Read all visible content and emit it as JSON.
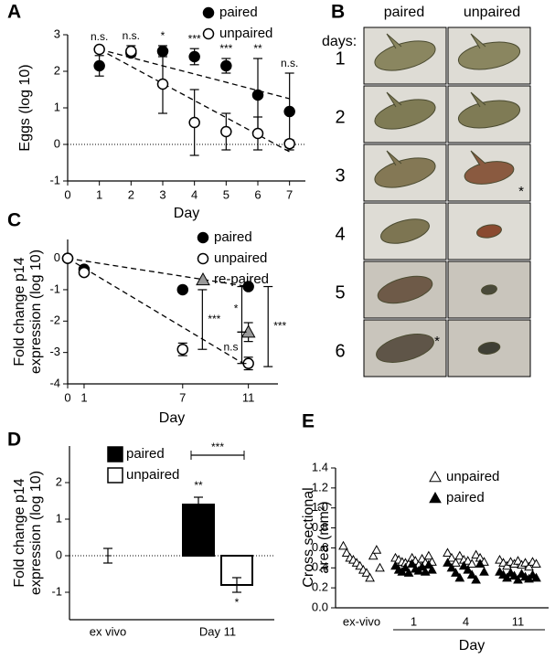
{
  "chart_data": [
    {
      "type": "line",
      "panel": "A",
      "ylabel": "Eggs (log 10)",
      "xlabel": "Day",
      "x": [
        1,
        2,
        3,
        4,
        5,
        6,
        7
      ],
      "xlim": [
        0,
        7.5
      ],
      "xticks": [
        0,
        1,
        2,
        3,
        4,
        5,
        6,
        7
      ],
      "ylim": [
        -1,
        3
      ],
      "yticks": [
        -1,
        0,
        1,
        2,
        3
      ],
      "series": [
        {
          "name": "paired",
          "color": "#000000",
          "marker": "filled",
          "values": [
            2.15,
            2.5,
            2.55,
            2.4,
            2.15,
            1.35,
            0.9
          ],
          "errors": [
            0.28,
            0.1,
            0.15,
            0.22,
            0.2,
            1.0,
            1.05
          ]
        },
        {
          "name": "unpaired",
          "color": "#000000",
          "marker": "open",
          "values": [
            2.6,
            2.55,
            1.65,
            0.6,
            0.35,
            0.3,
            0.02
          ],
          "errors": [
            0.08,
            0.15,
            0.8,
            0.9,
            0.5,
            0.45,
            0.1
          ]
        }
      ],
      "trend_lines": [
        {
          "x": [
            1,
            7
          ],
          "y": [
            2.6,
            1.25
          ]
        },
        {
          "x": [
            1,
            7
          ],
          "y": [
            2.6,
            -0.2
          ]
        }
      ],
      "reference_line": 0,
      "annotations": [
        {
          "text": "n.s.",
          "x": 1
        },
        {
          "text": "n.s.",
          "x": 2
        },
        {
          "text": "*",
          "x": 3
        },
        {
          "text": "***",
          "x": 4
        },
        {
          "text": "***",
          "x": 5
        },
        {
          "text": "**",
          "x": 6
        },
        {
          "text": "n.s.",
          "x": 7
        }
      ],
      "legend": "top-right"
    },
    {
      "type": "line",
      "panel": "C",
      "ylabel": [
        "Fold change p14",
        "expression (log 10)"
      ],
      "xlabel": "Day",
      "xlim": [
        0,
        12.8
      ],
      "xticks": [
        0,
        1,
        7,
        11
      ],
      "ylim": [
        -4,
        0.6
      ],
      "yticks": [
        -4,
        -3,
        -2,
        -1,
        0
      ],
      "series": [
        {
          "name": "paired",
          "color": "#000000",
          "marker": "filled",
          "x": [
            0,
            1,
            7,
            11
          ],
          "values": [
            0,
            -0.35,
            -1.0,
            -0.9
          ],
          "errors": [
            0.05,
            0.05,
            0.08,
            0.08
          ]
        },
        {
          "name": "unpaired",
          "color": "#000000",
          "marker": "open",
          "x": [
            0,
            1,
            7,
            11
          ],
          "values": [
            0,
            -0.45,
            -2.9,
            -3.35
          ],
          "errors": [
            0.05,
            0.08,
            0.2,
            0.2
          ]
        },
        {
          "name": "re-paired",
          "color": "#999999",
          "marker": "triangle",
          "x": [
            11
          ],
          "values": [
            -2.35
          ],
          "errors": [
            0.3
          ]
        }
      ],
      "trend_lines": [
        {
          "x": [
            0,
            11
          ],
          "y": [
            0,
            -0.9
          ]
        },
        {
          "x": [
            0,
            11
          ],
          "y": [
            0,
            -3.45
          ]
        }
      ],
      "brackets": [
        {
          "text": "***",
          "x": 8.2,
          "y": [
            -1.0,
            -2.9
          ]
        },
        {
          "text": "*",
          "x": 10.6,
          "y": [
            -0.9,
            -2.35
          ]
        },
        {
          "text": "n.s",
          "x": 10.6,
          "y": [
            -2.35,
            -3.35
          ]
        },
        {
          "text": "***",
          "x": 12.2,
          "y": [
            -0.9,
            -3.45
          ]
        }
      ],
      "legend": "top-right"
    },
    {
      "type": "bar",
      "panel": "D",
      "ylabel": [
        "Fold change p14",
        "expression (log 10)"
      ],
      "categories": [
        "ex vivo",
        "Day 11"
      ],
      "ylim": [
        -1.75,
        3
      ],
      "yticks": [
        -1,
        0,
        1,
        2
      ],
      "series": [
        {
          "name": "paired",
          "color": "#000000",
          "values": [
            null,
            1.4
          ],
          "errors": [
            null,
            0.2
          ]
        },
        {
          "name": "unpaired",
          "color": "#ffffff",
          "values": [
            0,
            -0.8
          ],
          "errors": [
            0.2,
            0.2
          ]
        }
      ],
      "annotations": [
        {
          "text": "**",
          "series": 0,
          "category": 1
        },
        {
          "text": "*",
          "series": 1,
          "category": 1
        }
      ],
      "comparison": {
        "text": "***",
        "category": 1
      },
      "reference_line": 0,
      "legend": "top-left"
    },
    {
      "type": "strip",
      "panel": "E",
      "ylabel": [
        "Cross sectional",
        "area (mm²)"
      ],
      "xlabel": "Day",
      "categories": [
        "ex-vivo",
        "1",
        "4",
        "11"
      ],
      "ylim": [
        0,
        1.4
      ],
      "yticks": [
        {
          "value": 0,
          "label": "0.0"
        },
        0.2,
        0.4,
        0.6,
        0.8,
        {
          "value": 1,
          "label": "1.0"
        },
        1.2,
        1.4
      ],
      "series": [
        {
          "name": "unpaired",
          "color": "#000000",
          "marker": "open",
          "values": [
            [
              0.62,
              0.55,
              0.5,
              0.48,
              0.45,
              0.42,
              0.38,
              0.35,
              0.3,
              0.52,
              0.58,
              0.4
            ],
            [
              0.5,
              0.48,
              0.46,
              0.45,
              0.44,
              0.5,
              0.47,
              0.43,
              0.49,
              0.45,
              0.52,
              0.46
            ],
            [
              0.55,
              0.5,
              0.45,
              0.52,
              0.48,
              0.47,
              0.44,
              0.53,
              0.5,
              0.46
            ],
            [
              0.48,
              0.45,
              0.42,
              0.46,
              0.44,
              0.47,
              0.43,
              0.45,
              0.41,
              0.46,
              0.44
            ]
          ]
        },
        {
          "name": "paired",
          "color": "#000000",
          "marker": "filled",
          "values": [
            null,
            [
              0.42,
              0.38,
              0.36,
              0.4,
              0.35,
              0.44,
              0.39,
              0.37,
              0.41,
              0.36,
              0.43,
              0.38
            ],
            [
              0.45,
              0.4,
              0.35,
              0.3,
              0.42,
              0.38,
              0.33,
              0.28,
              0.44,
              0.36
            ],
            [
              0.36,
              0.33,
              0.3,
              0.35,
              0.32,
              0.28,
              0.34,
              0.31,
              0.29,
              0.33,
              0.3
            ]
          ]
        }
      ],
      "legend": "top-right"
    }
  ],
  "panel_b": {
    "panel": "B",
    "columns": [
      "paired",
      "unpaired"
    ],
    "row_title": "days:",
    "rows": [
      "1",
      "2",
      "3",
      "4",
      "5",
      "6"
    ],
    "marks": [
      {
        "text": "*",
        "row": 2,
        "column": 1
      },
      {
        "text": "*",
        "row": 5,
        "column": 0
      }
    ]
  }
}
